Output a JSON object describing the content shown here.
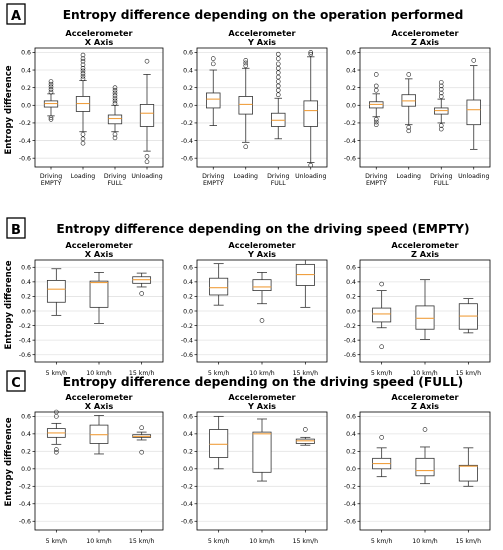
{
  "panels": [
    {
      "letter": "A",
      "title": "Entropy difference depending on the operation performed"
    },
    {
      "letter": "B",
      "title": "Entropy difference depending on the driving speed (EMPTY)"
    },
    {
      "letter": "C",
      "title": "Entropy difference depending on the driving speed (FULL)"
    }
  ],
  "ylabel": "Entropy difference",
  "colors": {
    "median": "#f0a040",
    "box": "#333333",
    "grid": "#e3e3e3"
  },
  "chart_data": [
    {
      "type": "box",
      "panel": "A",
      "subplot": 0,
      "title_line1": "Accelerometer",
      "title_line2": "X Axis",
      "categories": [
        "Driving\nEMPTY",
        "Loading",
        "Driving\nFULL",
        "Unloading"
      ],
      "ylim": [
        -0.7,
        0.65
      ],
      "yticks": [
        "0.6",
        "0.4",
        "0.2",
        "0.0",
        "-0.2",
        "-0.4",
        "-0.6"
      ],
      "grid": true,
      "boxes": [
        {
          "q1": -0.02,
          "median": 0.02,
          "q3": 0.05,
          "whislo": -0.12,
          "whishi": 0.13,
          "fliers": [
            0.15,
            0.18,
            0.21,
            0.24,
            0.27,
            -0.14,
            -0.16
          ]
        },
        {
          "q1": -0.07,
          "median": 0.02,
          "q3": 0.1,
          "whislo": -0.3,
          "whishi": 0.28,
          "fliers": [
            0.3,
            0.33,
            0.36,
            0.39,
            0.42,
            0.46,
            0.5,
            0.53,
            0.57,
            -0.33,
            -0.38,
            -0.43
          ]
        },
        {
          "q1": -0.21,
          "median": -0.15,
          "q3": -0.11,
          "whislo": -0.3,
          "whishi": 0.0,
          "fliers": [
            0.02,
            0.05,
            0.08,
            0.11,
            0.14,
            0.17,
            0.2,
            -0.33,
            -0.37
          ]
        },
        {
          "q1": -0.24,
          "median": -0.09,
          "q3": 0.01,
          "whislo": -0.52,
          "whishi": 0.35,
          "fliers": [
            0.5,
            -0.58,
            -0.64
          ]
        }
      ]
    },
    {
      "type": "box",
      "panel": "A",
      "subplot": 1,
      "title_line1": "Accelerometer",
      "title_line2": "Y Axis",
      "categories": [
        "Driving\nEMPTY",
        "Loading",
        "Driving\nFULL",
        "Unloading"
      ],
      "ylim": [
        -0.7,
        0.65
      ],
      "yticks": [
        "0.6",
        "0.4",
        "0.2",
        "0.0",
        "-0.2",
        "-0.4",
        "-0.6"
      ],
      "grid": true,
      "boxes": [
        {
          "q1": -0.03,
          "median": 0.07,
          "q3": 0.14,
          "whislo": -0.23,
          "whishi": 0.4,
          "fliers": [
            0.47,
            0.53
          ]
        },
        {
          "q1": -0.1,
          "median": 0.01,
          "q3": 0.1,
          "whislo": -0.42,
          "whishi": 0.42,
          "fliers": [
            0.45,
            0.48,
            0.51,
            -0.47
          ]
        },
        {
          "q1": -0.24,
          "median": -0.17,
          "q3": -0.09,
          "whislo": -0.38,
          "whishi": 0.08,
          "fliers": [
            0.12,
            0.17,
            0.22,
            0.27,
            0.32,
            0.37,
            0.42,
            0.47,
            0.53,
            0.58
          ]
        },
        {
          "q1": -0.24,
          "median": -0.06,
          "q3": 0.05,
          "whislo": -0.65,
          "whishi": 0.55,
          "fliers": [
            0.58,
            0.6,
            -0.68
          ]
        }
      ]
    },
    {
      "type": "box",
      "panel": "A",
      "subplot": 2,
      "title_line1": "Accelerometer",
      "title_line2": "Z Axis",
      "categories": [
        "Driving\nEMPTY",
        "Loading",
        "Driving\nFULL",
        "Unloading"
      ],
      "ylim": [
        -0.7,
        0.65
      ],
      "yticks": [
        "0.6",
        "0.4",
        "0.2",
        "0.0",
        "-0.2",
        "-0.4",
        "-0.6"
      ],
      "grid": true,
      "boxes": [
        {
          "q1": -0.03,
          "median": 0.01,
          "q3": 0.04,
          "whislo": -0.13,
          "whishi": 0.13,
          "fliers": [
            0.17,
            0.22,
            0.35,
            -0.16,
            -0.19,
            -0.22
          ]
        },
        {
          "q1": -0.01,
          "median": 0.05,
          "q3": 0.12,
          "whislo": -0.22,
          "whishi": 0.3,
          "fliers": [
            0.35,
            -0.25,
            -0.29
          ]
        },
        {
          "q1": -0.1,
          "median": -0.06,
          "q3": -0.03,
          "whislo": -0.2,
          "whishi": 0.07,
          "fliers": [
            0.1,
            0.14,
            0.18,
            0.22,
            0.26,
            -0.23,
            -0.27
          ]
        },
        {
          "q1": -0.22,
          "median": -0.05,
          "q3": 0.06,
          "whislo": -0.5,
          "whishi": 0.45,
          "fliers": [
            0.51
          ]
        }
      ]
    },
    {
      "type": "box",
      "panel": "B",
      "subplot": 0,
      "title_line1": "Accelerometer",
      "title_line2": "X Axis",
      "categories": [
        "5 km/h",
        "10 km/h",
        "15 km/h"
      ],
      "ylim": [
        -0.7,
        0.7
      ],
      "yticks": [
        "0.6",
        "0.4",
        "0.2",
        "0.0",
        "-0.2",
        "-0.4",
        "-0.6"
      ],
      "grid": true,
      "boxes": [
        {
          "q1": 0.12,
          "median": 0.3,
          "q3": 0.42,
          "whislo": -0.06,
          "whishi": 0.58,
          "fliers": []
        },
        {
          "q1": 0.05,
          "median": 0.39,
          "q3": 0.41,
          "whislo": -0.17,
          "whishi": 0.53,
          "fliers": []
        },
        {
          "q1": 0.38,
          "median": 0.43,
          "q3": 0.47,
          "whislo": 0.33,
          "whishi": 0.52,
          "fliers": [
            0.24
          ]
        }
      ]
    },
    {
      "type": "box",
      "panel": "B",
      "subplot": 1,
      "title_line1": "Accelerometer",
      "title_line2": "Y Axis",
      "categories": [
        "5 km/h",
        "10 km/h",
        "15 km/h"
      ],
      "ylim": [
        -0.7,
        0.7
      ],
      "yticks": [
        "0.6",
        "0.4",
        "0.2",
        "0.0",
        "-0.2",
        "-0.4",
        "-0.6"
      ],
      "grid": true,
      "boxes": [
        {
          "q1": 0.22,
          "median": 0.32,
          "q3": 0.45,
          "whislo": 0.08,
          "whishi": 0.65,
          "fliers": []
        },
        {
          "q1": 0.28,
          "median": 0.33,
          "q3": 0.43,
          "whislo": 0.1,
          "whishi": 0.53,
          "fliers": [
            -0.13
          ]
        },
        {
          "q1": 0.35,
          "median": 0.5,
          "q3": 0.64,
          "whislo": 0.05,
          "whishi": 0.7,
          "fliers": []
        }
      ]
    },
    {
      "type": "box",
      "panel": "B",
      "subplot": 2,
      "title_line1": "Accelerometer",
      "title_line2": "Z Axis",
      "categories": [
        "5 km/h",
        "10 km/h",
        "15 km/h"
      ],
      "ylim": [
        -0.7,
        0.7
      ],
      "yticks": [
        "0.6",
        "0.4",
        "0.2",
        "0.0",
        "-0.2",
        "-0.4",
        "-0.6"
      ],
      "grid": true,
      "boxes": [
        {
          "q1": -0.15,
          "median": -0.04,
          "q3": 0.04,
          "whislo": -0.23,
          "whishi": 0.28,
          "fliers": [
            0.37,
            -0.49
          ]
        },
        {
          "q1": -0.25,
          "median": -0.1,
          "q3": 0.07,
          "whislo": -0.39,
          "whishi": 0.43,
          "fliers": []
        },
        {
          "q1": -0.25,
          "median": -0.07,
          "q3": 0.1,
          "whislo": -0.3,
          "whishi": 0.17,
          "fliers": []
        }
      ]
    },
    {
      "type": "box",
      "panel": "C",
      "subplot": 0,
      "title_line1": "Accelerometer",
      "title_line2": "X Axis",
      "categories": [
        "5 km/h",
        "10 km/h",
        "15 km/h"
      ],
      "ylim": [
        -0.7,
        0.65
      ],
      "yticks": [
        "0.6",
        "0.4",
        "0.2",
        "0.0",
        "-0.2",
        "-0.4",
        "-0.6"
      ],
      "grid": true,
      "boxes": [
        {
          "q1": 0.36,
          "median": 0.41,
          "q3": 0.46,
          "whislo": 0.28,
          "whishi": 0.52,
          "fliers": [
            0.6,
            0.65,
            0.22,
            0.19
          ]
        },
        {
          "q1": 0.29,
          "median": 0.39,
          "q3": 0.5,
          "whislo": 0.17,
          "whishi": 0.61,
          "fliers": []
        },
        {
          "q1": 0.36,
          "median": 0.37,
          "q3": 0.39,
          "whislo": 0.33,
          "whishi": 0.42,
          "fliers": [
            0.47,
            0.19
          ]
        }
      ]
    },
    {
      "type": "box",
      "panel": "C",
      "subplot": 1,
      "title_line1": "Accelerometer",
      "title_line2": "Y Axis",
      "categories": [
        "5 km/h",
        "10 km/h",
        "15 km/h"
      ],
      "ylim": [
        -0.7,
        0.65
      ],
      "yticks": [
        "0.6",
        "0.4",
        "0.2",
        "0.0",
        "-0.2",
        "-0.4",
        "-0.6"
      ],
      "grid": true,
      "boxes": [
        {
          "q1": 0.13,
          "median": 0.28,
          "q3": 0.45,
          "whislo": 0.0,
          "whishi": 0.6,
          "fliers": []
        },
        {
          "q1": -0.04,
          "median": 0.4,
          "q3": 0.42,
          "whislo": -0.14,
          "whishi": 0.57,
          "fliers": []
        },
        {
          "q1": 0.29,
          "median": 0.32,
          "q3": 0.34,
          "whislo": 0.27,
          "whishi": 0.36,
          "fliers": [
            0.45
          ]
        }
      ]
    },
    {
      "type": "box",
      "panel": "C",
      "subplot": 2,
      "title_line1": "Accelerometer",
      "title_line2": "Z Axis",
      "categories": [
        "5 km/h",
        "10 km/h",
        "15 km/h"
      ],
      "ylim": [
        -0.7,
        0.65
      ],
      "yticks": [
        "0.6",
        "0.4",
        "0.2",
        "0.0",
        "-0.2",
        "-0.4",
        "-0.6"
      ],
      "grid": true,
      "boxes": [
        {
          "q1": 0.0,
          "median": 0.06,
          "q3": 0.12,
          "whislo": -0.09,
          "whishi": 0.24,
          "fliers": [
            0.36
          ]
        },
        {
          "q1": -0.08,
          "median": -0.02,
          "q3": 0.12,
          "whislo": -0.17,
          "whishi": 0.25,
          "fliers": [
            0.45
          ]
        },
        {
          "q1": -0.14,
          "median": 0.03,
          "q3": 0.04,
          "whislo": -0.2,
          "whishi": 0.24,
          "fliers": []
        }
      ]
    }
  ]
}
